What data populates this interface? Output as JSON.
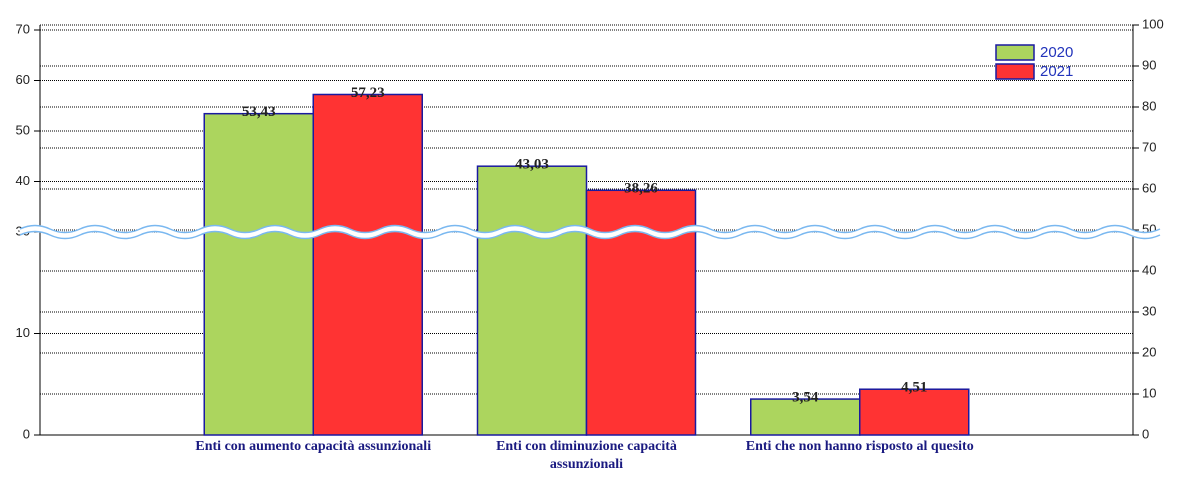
{
  "chart_data": {
    "type": "bar",
    "categories": [
      "Enti con aumento capacità assunzionali",
      "Enti con diminuzione capacità assunzionali",
      "Enti che non hanno risposto al quesito"
    ],
    "series": [
      {
        "name": "2020",
        "color": "#acd55e",
        "values": [
          53.43,
          43.03,
          3.54
        ],
        "value_labels": [
          "53,43",
          "43,03",
          "3,54"
        ]
      },
      {
        "name": "2021",
        "color": "#ff3333",
        "values": [
          57.23,
          38.26,
          4.51
        ],
        "value_labels": [
          "57,23",
          "38,26",
          "4,51"
        ]
      }
    ],
    "ylim": [
      0,
      70
    ],
    "yticks": [
      0,
      10,
      30,
      40,
      50,
      60,
      70
    ],
    "axis_break": [
      20,
      30
    ],
    "y2lim": [
      0,
      100
    ],
    "y2ticks": [
      0,
      10,
      20,
      30,
      40,
      50,
      60,
      70,
      80,
      90,
      100
    ],
    "grid": true,
    "legend": "top-right"
  }
}
